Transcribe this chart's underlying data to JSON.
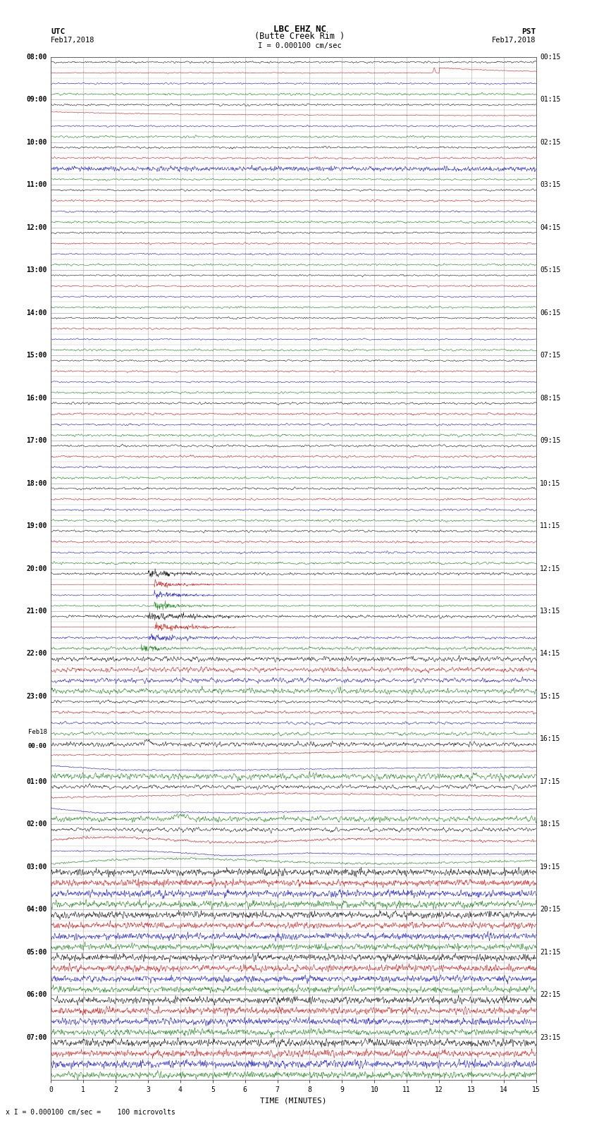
{
  "title_line1": "LBC EHZ NC",
  "title_line2": "(Butte Creek Rim )",
  "scale_text": "I = 0.000100 cm/sec",
  "left_top_label": "UTC",
  "left_date": "Feb17,2018",
  "right_top_label": "PST",
  "right_date": "Feb17,2018",
  "bottom_label": "TIME (MINUTES)",
  "bottom_note": "x I = 0.000100 cm/sec =    100 microvolts",
  "utc_times": [
    "08:00",
    "",
    "",
    "",
    "09:00",
    "",
    "",
    "",
    "10:00",
    "",
    "",
    "",
    "11:00",
    "",
    "",
    "",
    "12:00",
    "",
    "",
    "",
    "13:00",
    "",
    "",
    "",
    "14:00",
    "",
    "",
    "",
    "15:00",
    "",
    "",
    "",
    "16:00",
    "",
    "",
    "",
    "17:00",
    "",
    "",
    "",
    "18:00",
    "",
    "",
    "",
    "19:00",
    "",
    "",
    "",
    "20:00",
    "",
    "",
    "",
    "21:00",
    "",
    "",
    "",
    "22:00",
    "",
    "",
    "",
    "23:00",
    "",
    "",
    "",
    "Feb18\n00:00",
    "",
    "",
    "",
    "01:00",
    "",
    "",
    "",
    "02:00",
    "",
    "",
    "",
    "03:00",
    "",
    "",
    "",
    "04:00",
    "",
    "",
    "",
    "05:00",
    "",
    "",
    "",
    "06:00",
    "",
    "",
    "",
    "07:00",
    "",
    "",
    ""
  ],
  "pst_times": [
    "00:15",
    "",
    "",
    "",
    "01:15",
    "",
    "",
    "",
    "02:15",
    "",
    "",
    "",
    "03:15",
    "",
    "",
    "",
    "04:15",
    "",
    "",
    "",
    "05:15",
    "",
    "",
    "",
    "06:15",
    "",
    "",
    "",
    "07:15",
    "",
    "",
    "",
    "08:15",
    "",
    "",
    "",
    "09:15",
    "",
    "",
    "",
    "10:15",
    "",
    "",
    "",
    "11:15",
    "",
    "",
    "",
    "12:15",
    "",
    "",
    "",
    "13:15",
    "",
    "",
    "",
    "14:15",
    "",
    "",
    "",
    "15:15",
    "",
    "",
    "",
    "16:15",
    "",
    "",
    "",
    "17:15",
    "",
    "",
    "",
    "18:15",
    "",
    "",
    "",
    "19:15",
    "",
    "",
    "",
    "20:15",
    "",
    "",
    "",
    "21:15",
    "",
    "",
    "",
    "22:15",
    "",
    "",
    "",
    "23:15",
    "",
    "",
    ""
  ],
  "n_rows": 96,
  "x_min": 0,
  "x_max": 15,
  "colors": {
    "black": "#000000",
    "red": "#cc0000",
    "blue": "#0000cc",
    "green": "#007700",
    "background": "#ffffff",
    "grid": "#aaaaaa"
  },
  "seed": 42
}
